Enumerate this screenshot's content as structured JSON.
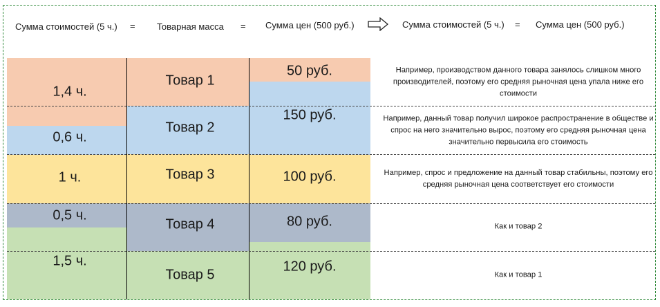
{
  "header": {
    "sum_costs": "Сумма стоимостей (5 ч.)",
    "eq1": "=",
    "goods_mass": "Товарная масса",
    "eq2": "=",
    "sum_prices": "Сумма цен (500 руб.)",
    "arrow_icon": "right-arrow-icon",
    "sum_costs_2": "Сумма стоимостей (5 ч.)",
    "eq3": "=",
    "sum_prices_2": "Сумма цен (500 руб.)"
  },
  "rows": [
    {
      "hours": "1,4 ч.",
      "good": "Товар 1",
      "price": "50 руб.",
      "note": "Например, производством данного товара занялось слишком много производителей, поэтому его средняя рыночная цена упала ниже его стоимости"
    },
    {
      "hours": "0,6 ч.",
      "good": "Товар 2",
      "price": "150 руб.",
      "note": "Например, данный товар получил широкое распространение в обществе и спрос на него значительно вырос, поэтому его средняя рыночная цена значительно первысила его стоимость"
    },
    {
      "hours": "1 ч.",
      "good": "Товар 3",
      "price": "100 руб.",
      "note": "Например, спрос и предложение на данный товар стабильны, поэтому его средняя рыночная цена соответствует его стоимости"
    },
    {
      "hours": "0,5 ч.",
      "good": "Товар 4",
      "price": "80 руб.",
      "note": "Как и товар 2"
    },
    {
      "hours": "1,5 ч.",
      "good": "Товар 5",
      "price": "120 руб.",
      "note": "Как и товар 1"
    }
  ],
  "colors": {
    "good1": "#f7cbb0",
    "good2": "#bdd7ee",
    "good3": "#fde49b",
    "good4": "#adb9ca",
    "good5": "#c6e0b4",
    "frame": "#2f8a3a"
  }
}
